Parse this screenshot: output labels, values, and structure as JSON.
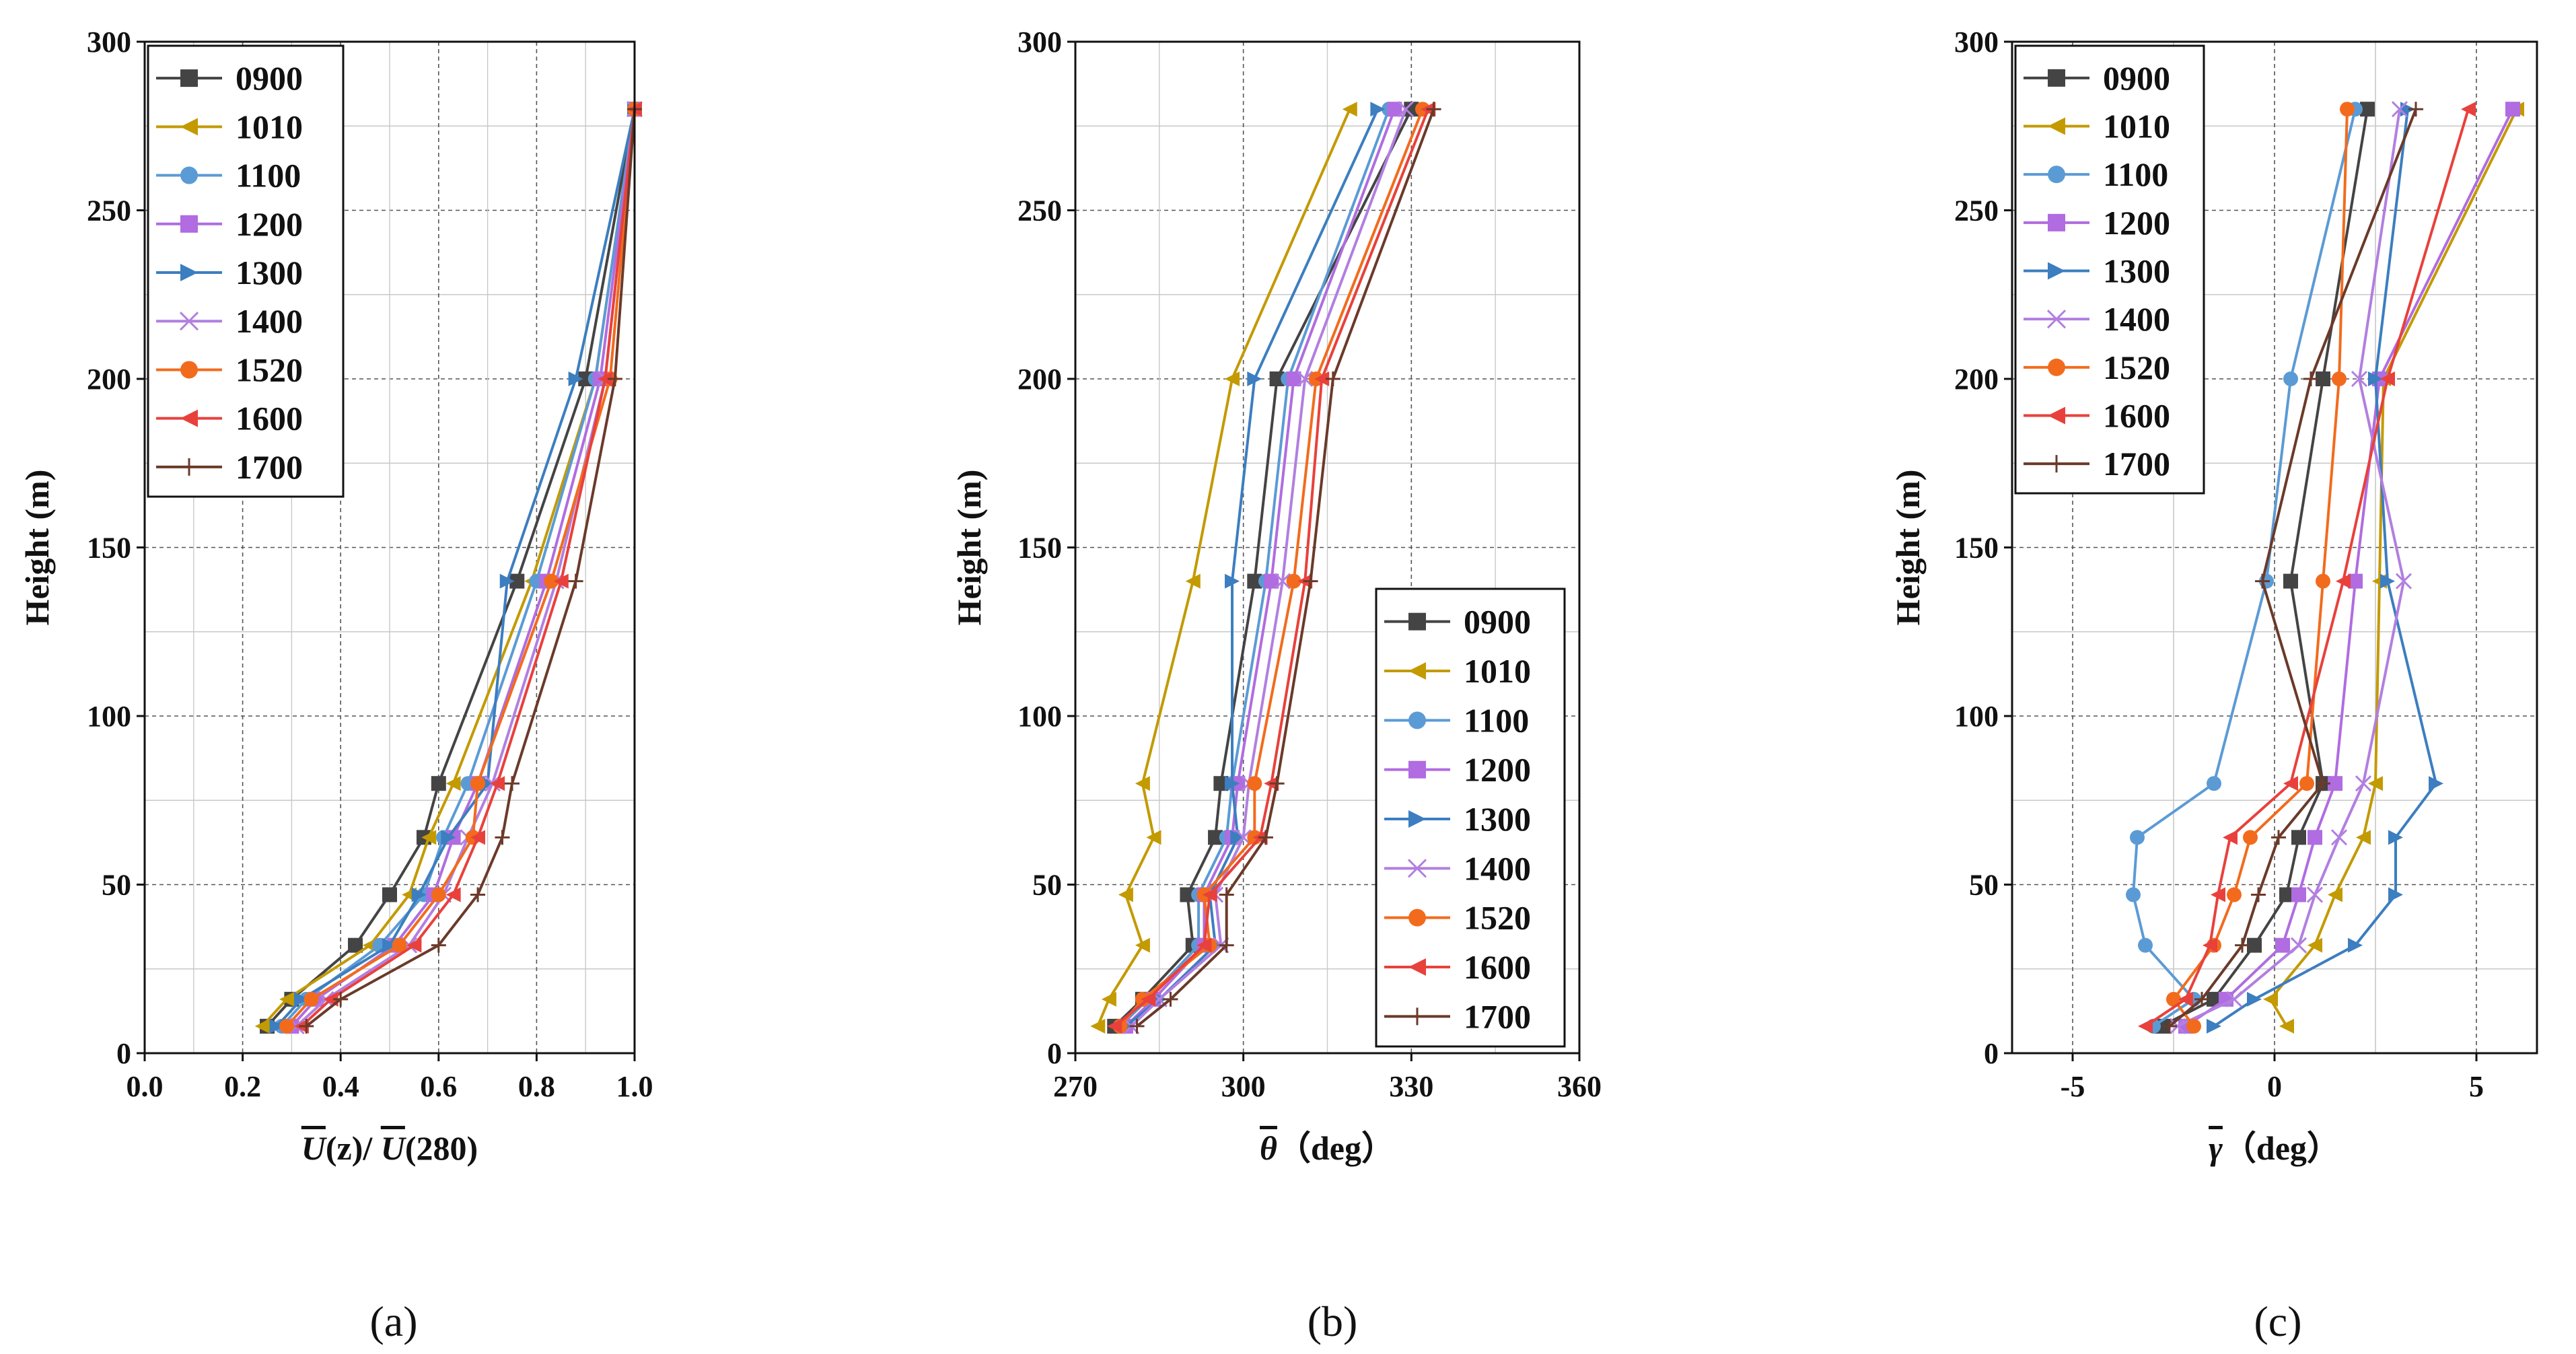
{
  "chart_data": [
    {
      "id": "a",
      "type": "line",
      "panel_label": "(a)",
      "xlabel": "U(z)/ U(280)",
      "xlabel_parts": [
        "U",
        "(z)/ ",
        "U",
        "(280)"
      ],
      "ylabel": "Height (m)",
      "xlim": [
        0.0,
        1.0
      ],
      "ylim": [
        0,
        300
      ],
      "xticks": [
        "0.0",
        "0.2",
        "0.4",
        "0.6",
        "0.8",
        "1.0"
      ],
      "yticks": [
        "0",
        "50",
        "100",
        "150",
        "200",
        "250",
        "300"
      ],
      "grid": true,
      "legend_position": "top-left",
      "heights": [
        8,
        16,
        32,
        47,
        64,
        80,
        140,
        200,
        280
      ],
      "series": [
        {
          "name": "0900",
          "color": "#444444",
          "marker": "square",
          "values": [
            0.25,
            0.3,
            0.43,
            0.5,
            0.57,
            0.6,
            0.76,
            0.9,
            1.0
          ]
        },
        {
          "name": "1010",
          "color": "#C39A00",
          "marker": "triangle-left",
          "values": [
            0.24,
            0.29,
            0.46,
            0.54,
            0.58,
            0.63,
            0.79,
            0.92,
            1.0
          ]
        },
        {
          "name": "1100",
          "color": "#5B9BD5",
          "marker": "circle",
          "values": [
            0.28,
            0.33,
            0.48,
            0.57,
            0.61,
            0.66,
            0.8,
            0.92,
            1.0
          ]
        },
        {
          "name": "1200",
          "color": "#B06CE0",
          "marker": "square",
          "values": [
            0.3,
            0.35,
            0.51,
            0.59,
            0.63,
            0.68,
            0.82,
            0.93,
            1.0
          ]
        },
        {
          "name": "1300",
          "color": "#3C7EC0",
          "marker": "triangle-right",
          "values": [
            0.27,
            0.32,
            0.5,
            0.56,
            0.62,
            0.7,
            0.74,
            0.88,
            1.0
          ]
        },
        {
          "name": "1400",
          "color": "#B27FE0",
          "marker": "x",
          "values": [
            0.31,
            0.37,
            0.54,
            0.61,
            0.66,
            0.71,
            0.84,
            0.94,
            1.0
          ]
        },
        {
          "name": "1520",
          "color": "#F26B1D",
          "marker": "circle",
          "values": [
            0.29,
            0.34,
            0.52,
            0.6,
            0.67,
            0.68,
            0.83,
            0.95,
            1.0
          ]
        },
        {
          "name": "1600",
          "color": "#E8413C",
          "marker": "triangle-left",
          "values": [
            0.32,
            0.38,
            0.55,
            0.63,
            0.68,
            0.72,
            0.85,
            0.94,
            1.0
          ]
        },
        {
          "name": "1700",
          "color": "#6B3A2A",
          "marker": "plus",
          "values": [
            0.33,
            0.4,
            0.6,
            0.68,
            0.73,
            0.75,
            0.88,
            0.96,
            1.0
          ]
        }
      ]
    },
    {
      "id": "b",
      "type": "line",
      "panel_label": "(b)",
      "xlabel": "θ（deg）",
      "xlabel_parts": [
        "θ",
        "（deg）"
      ],
      "ylabel": "Height (m)",
      "xlim": [
        270,
        360
      ],
      "ylim": [
        0,
        300
      ],
      "xticks": [
        "270",
        "300",
        "330",
        "360"
      ],
      "yticks": [
        "0",
        "50",
        "100",
        "150",
        "200",
        "250",
        "300"
      ],
      "grid": true,
      "legend_position": "center-right",
      "heights": [
        8,
        16,
        32,
        47,
        64,
        80,
        140,
        200,
        280
      ],
      "series": [
        {
          "name": "0900",
          "color": "#444444",
          "marker": "square",
          "values": [
            277,
            282,
            291,
            290,
            295,
            296,
            302,
            306,
            330
          ]
        },
        {
          "name": "1010",
          "color": "#C39A00",
          "marker": "triangle-left",
          "values": [
            274,
            276,
            282,
            279,
            284,
            282,
            291,
            298,
            319
          ]
        },
        {
          "name": "1100",
          "color": "#5B9BD5",
          "marker": "circle",
          "values": [
            278,
            283,
            292,
            292,
            297,
            298,
            304,
            308,
            326
          ]
        },
        {
          "name": "1200",
          "color": "#B06CE0",
          "marker": "square",
          "values": [
            279,
            284,
            293,
            293,
            298,
            299,
            305,
            309,
            327
          ]
        },
        {
          "name": "1300",
          "color": "#3C7EC0",
          "marker": "triangle-right",
          "values": [
            279,
            285,
            295,
            294,
            299,
            298,
            298,
            302,
            324
          ]
        },
        {
          "name": "1400",
          "color": "#B27FE0",
          "marker": "x",
          "values": [
            280,
            285,
            296,
            295,
            300,
            301,
            307,
            311,
            329
          ]
        },
        {
          "name": "1520",
          "color": "#F26B1D",
          "marker": "circle",
          "values": [
            278,
            282,
            294,
            293,
            302,
            302,
            309,
            313,
            332
          ]
        },
        {
          "name": "1600",
          "color": "#E8413C",
          "marker": "triangle-left",
          "values": [
            277,
            283,
            293,
            294,
            303,
            305,
            311,
            314,
            333
          ]
        },
        {
          "name": "1700",
          "color": "#6B3A2A",
          "marker": "plus",
          "values": [
            281,
            287,
            297,
            297,
            304,
            306,
            312,
            316,
            334
          ]
        }
      ]
    },
    {
      "id": "c",
      "type": "line",
      "panel_label": "(c)",
      "xlabel": "γ（deg）",
      "xlabel_parts": [
        "γ",
        "（deg）"
      ],
      "ylabel": "Height (m)",
      "xlim": [
        -6.5,
        6.5
      ],
      "ylim": [
        0,
        300
      ],
      "xticks": [
        "-5",
        "0",
        "5"
      ],
      "xtick_values": [
        -5,
        0,
        5
      ],
      "yticks": [
        "0",
        "50",
        "100",
        "150",
        "200",
        "250",
        "300"
      ],
      "grid": true,
      "legend_position": "top-left",
      "heights": [
        8,
        16,
        32,
        47,
        64,
        80,
        140,
        200,
        280
      ],
      "series": [
        {
          "name": "0900",
          "color": "#444444",
          "marker": "square",
          "values": [
            -2.8,
            -1.5,
            -0.5,
            0.3,
            0.6,
            1.2,
            0.4,
            1.2,
            2.3
          ]
        },
        {
          "name": "1010",
          "color": "#C39A00",
          "marker": "triangle-left",
          "values": [
            0.3,
            -0.1,
            1.0,
            1.5,
            2.2,
            2.5,
            2.6,
            2.7,
            6.0
          ]
        },
        {
          "name": "1100",
          "color": "#5B9BD5",
          "marker": "circle",
          "values": [
            -3.0,
            -2.0,
            -3.2,
            -3.5,
            -3.4,
            -1.5,
            -0.2,
            0.4,
            2.0
          ]
        },
        {
          "name": "1200",
          "color": "#B06CE0",
          "marker": "square",
          "values": [
            -2.2,
            -1.2,
            0.2,
            0.6,
            1.0,
            1.5,
            2.0,
            2.6,
            5.9
          ]
        },
        {
          "name": "1300",
          "color": "#3C7EC0",
          "marker": "triangle-right",
          "values": [
            -1.5,
            -0.5,
            2.0,
            3.0,
            3.0,
            4.0,
            2.8,
            2.5,
            3.3
          ]
        },
        {
          "name": "1400",
          "color": "#B27FE0",
          "marker": "x",
          "values": [
            -2.4,
            -1.0,
            0.6,
            1.0,
            1.6,
            2.2,
            3.2,
            2.1,
            3.1
          ]
        },
        {
          "name": "1520",
          "color": "#F26B1D",
          "marker": "circle",
          "values": [
            -2.0,
            -2.5,
            -1.5,
            -1.0,
            -0.6,
            0.8,
            1.2,
            1.6,
            1.8
          ]
        },
        {
          "name": "1600",
          "color": "#E8413C",
          "marker": "triangle-left",
          "values": [
            -3.2,
            -2.2,
            -1.6,
            -1.4,
            -1.1,
            0.4,
            1.7,
            2.8,
            4.8
          ]
        },
        {
          "name": "1700",
          "color": "#6B3A2A",
          "marker": "plus",
          "values": [
            -2.6,
            -1.8,
            -0.8,
            -0.4,
            0.1,
            1.2,
            -0.3,
            0.9,
            3.5
          ]
        }
      ]
    }
  ]
}
